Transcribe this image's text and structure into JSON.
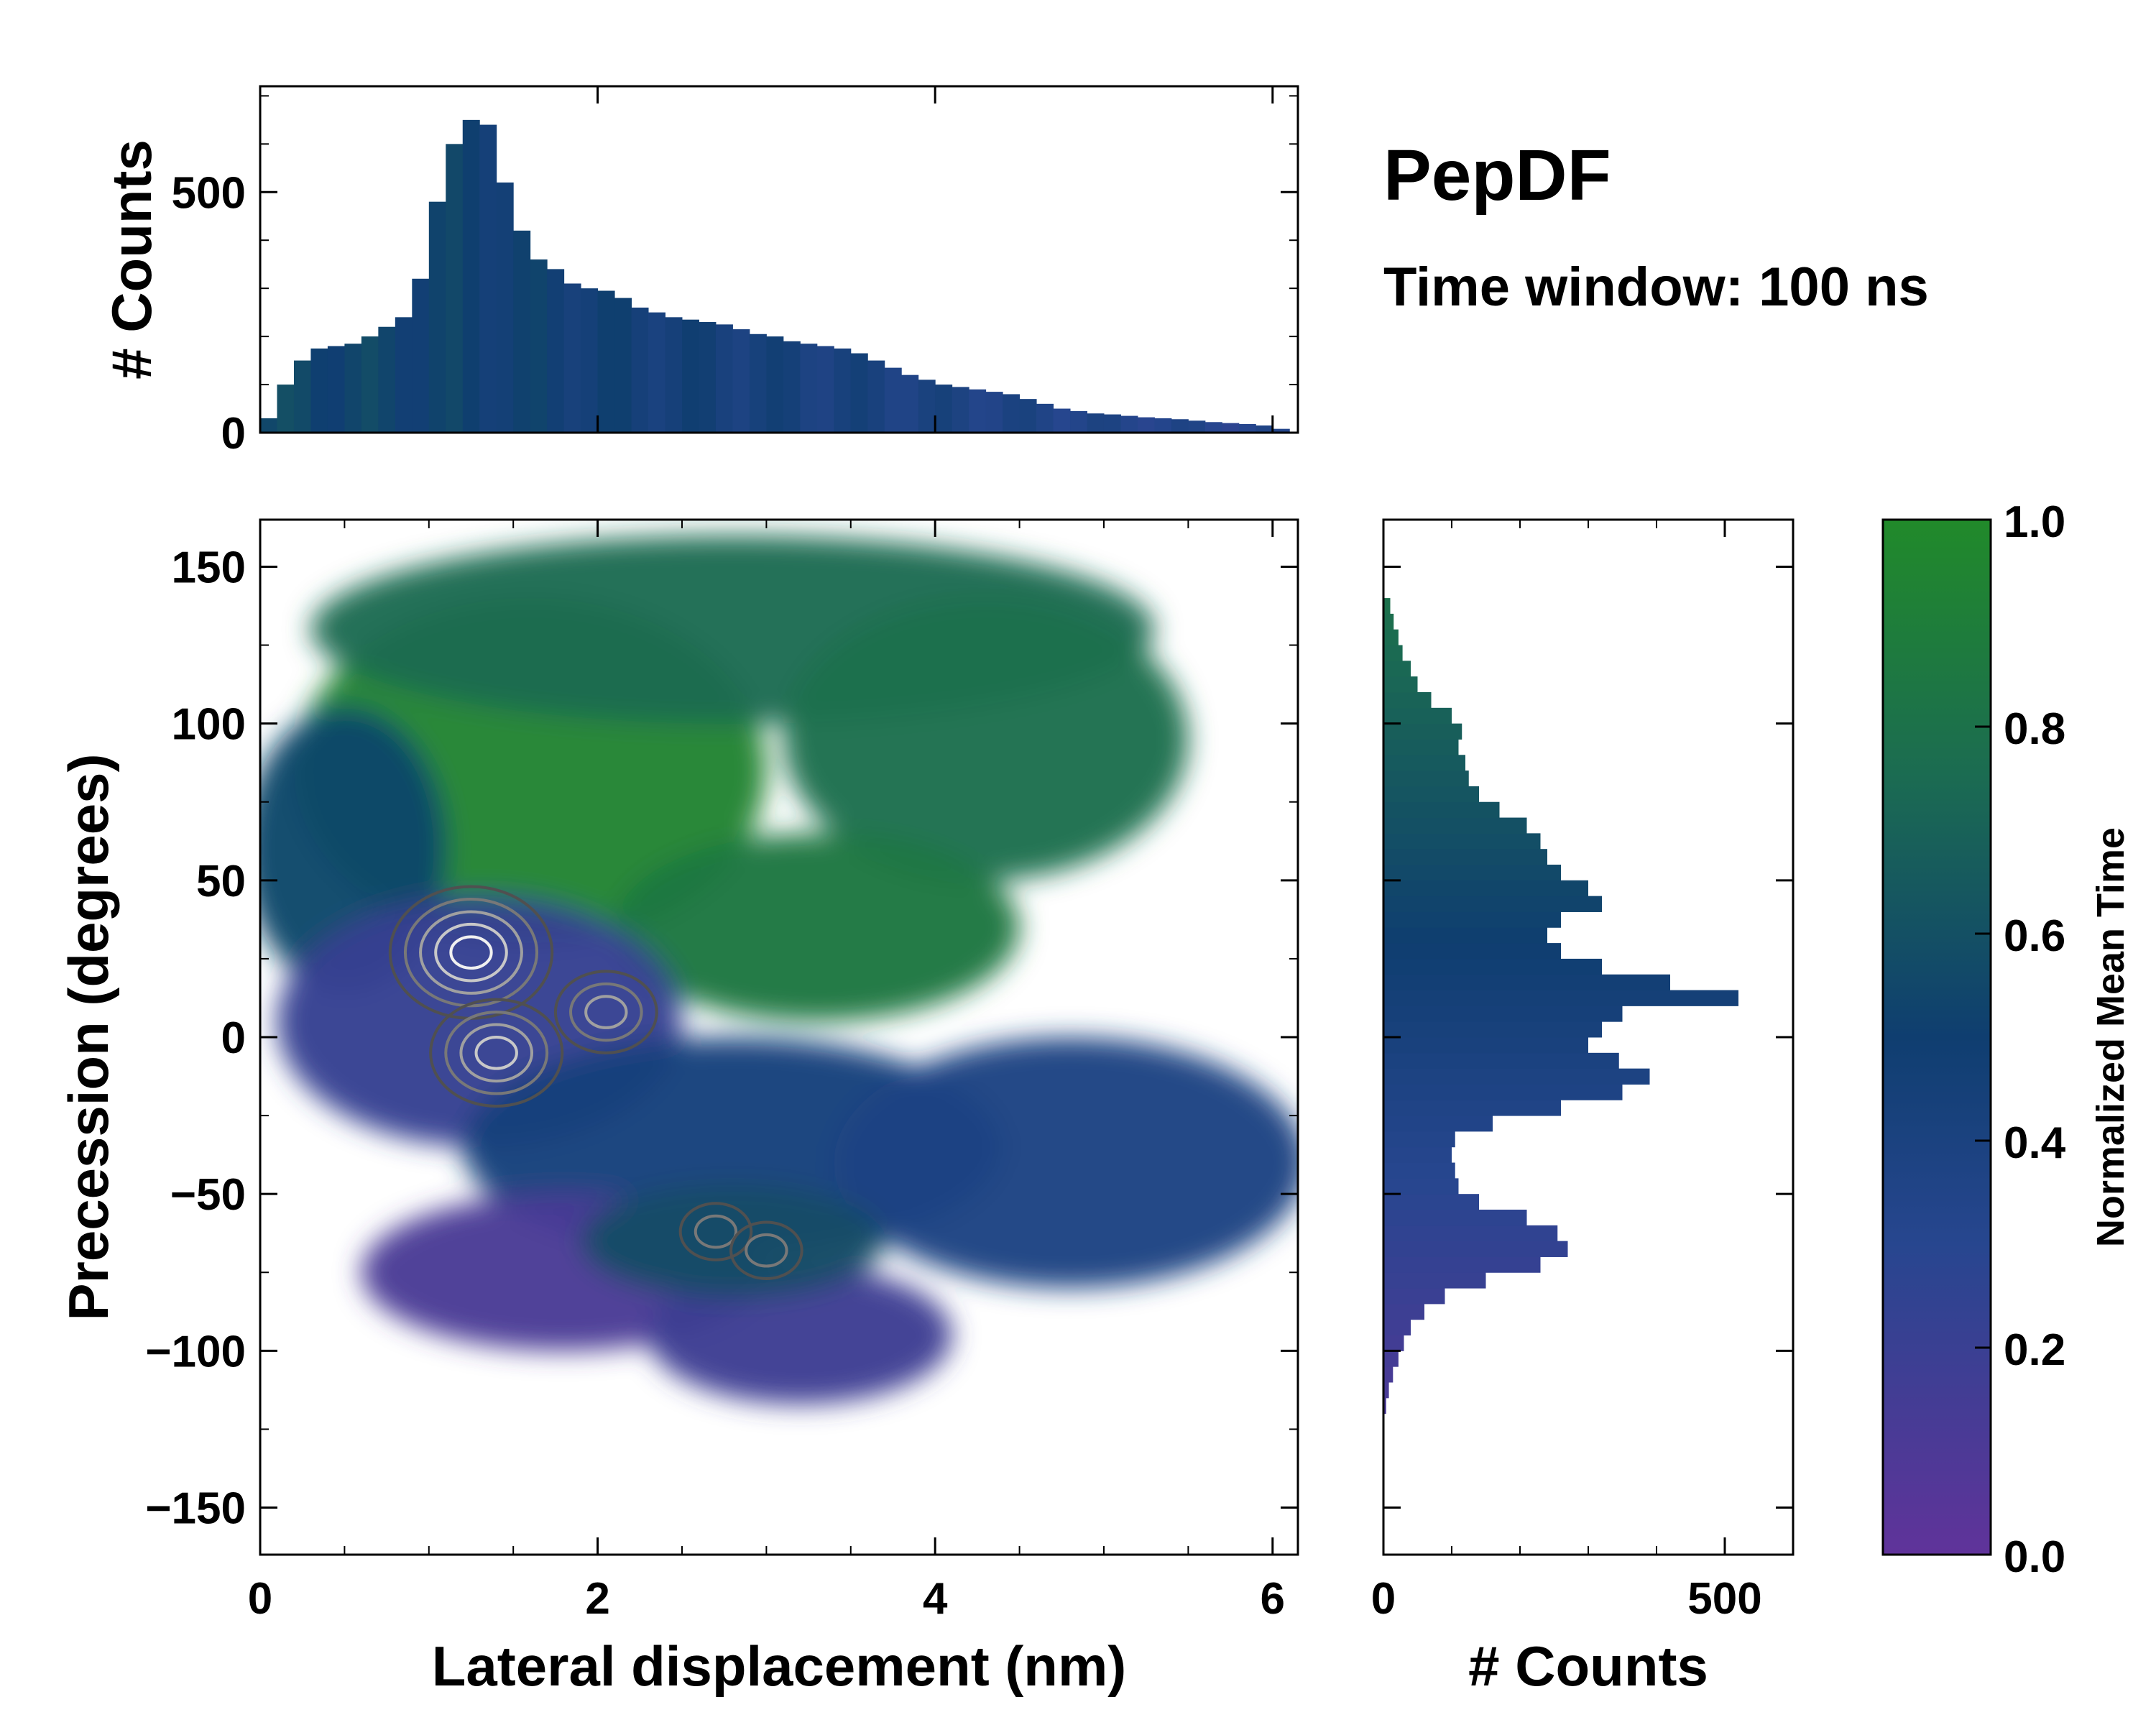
{
  "chart_data": {
    "type": "heatmap",
    "title": "PepDF",
    "subtitle": "Time window: 100 ns",
    "main": {
      "xlabel": "Lateral displacement (nm)",
      "ylabel": "Precession (degrees)",
      "xlim": [
        0,
        6.15
      ],
      "ylim": [
        -165,
        165
      ],
      "xticks": [
        0,
        2,
        4,
        6
      ],
      "xtick_labels": [
        "0",
        "2",
        "4",
        "6"
      ],
      "yticks": [
        150,
        100,
        50,
        0,
        -50,
        -100,
        -150
      ],
      "ytick_labels": [
        "150",
        "100",
        "50",
        "0",
        "−50",
        "−100",
        "−150"
      ],
      "regions": [
        {
          "name": "upper-left-green",
          "x": 1.6,
          "y": 85,
          "rx": 1.4,
          "ry": 55,
          "value": 0.95
        },
        {
          "name": "top-band",
          "x": 2.8,
          "y": 130,
          "rx": 2.5,
          "ry": 30,
          "value": 0.75
        },
        {
          "name": "upper-right-lobe",
          "x": 4.3,
          "y": 95,
          "rx": 1.2,
          "ry": 45,
          "value": 0.78
        },
        {
          "name": "mid-green",
          "x": 3.3,
          "y": 35,
          "rx": 1.2,
          "ry": 30,
          "value": 0.85
        },
        {
          "name": "left-blue",
          "x": 0.5,
          "y": 60,
          "rx": 0.6,
          "ry": 45,
          "value": 0.55
        },
        {
          "name": "central-purple",
          "x": 1.3,
          "y": 5,
          "rx": 1.2,
          "ry": 40,
          "value": 0.22
        },
        {
          "name": "lower-mid-blue",
          "x": 2.8,
          "y": -35,
          "rx": 1.6,
          "ry": 35,
          "value": 0.42
        },
        {
          "name": "right-band-blue",
          "x": 4.8,
          "y": -40,
          "rx": 1.4,
          "ry": 40,
          "value": 0.38
        },
        {
          "name": "lower-left-purple",
          "x": 1.8,
          "y": -75,
          "rx": 1.2,
          "ry": 25,
          "value": 0.12
        },
        {
          "name": "bottom-purple",
          "x": 3.2,
          "y": -95,
          "rx": 0.9,
          "ry": 22,
          "value": 0.18
        },
        {
          "name": "lower-teal",
          "x": 2.8,
          "y": -65,
          "rx": 0.9,
          "ry": 18,
          "value": 0.58
        }
      ],
      "density_peaks": [
        {
          "x": 1.25,
          "y": 27,
          "level": 5
        },
        {
          "x": 1.4,
          "y": -5,
          "level": 4
        },
        {
          "x": 2.05,
          "y": 8,
          "level": 3
        },
        {
          "x": 2.7,
          "y": -62,
          "level": 2
        },
        {
          "x": 3.0,
          "y": -68,
          "level": 2
        }
      ]
    },
    "top_histogram": {
      "ylabel": "# Counts",
      "ylim": [
        0,
        720
      ],
      "yticks": [
        0,
        500
      ],
      "ytick_labels": [
        "0",
        "500"
      ],
      "x_start": 0.0,
      "bin_width": 0.1,
      "counts": [
        30,
        100,
        150,
        175,
        180,
        185,
        200,
        220,
        240,
        320,
        480,
        600,
        650,
        640,
        520,
        420,
        360,
        340,
        310,
        300,
        295,
        280,
        260,
        250,
        240,
        235,
        230,
        225,
        215,
        205,
        200,
        190,
        185,
        180,
        175,
        165,
        150,
        135,
        120,
        110,
        100,
        95,
        90,
        85,
        80,
        70,
        60,
        50,
        45,
        40,
        38,
        35,
        32,
        30,
        28,
        25,
        22,
        20,
        18,
        15,
        8,
        2
      ]
    },
    "right_histogram": {
      "xlabel": "# Counts",
      "xlim": [
        0,
        600
      ],
      "xticks": [
        0,
        500
      ],
      "xtick_labels": [
        "0",
        "500"
      ],
      "y_start": -120,
      "bin_width": 5,
      "counts": [
        4,
        8,
        14,
        22,
        30,
        40,
        60,
        90,
        150,
        230,
        270,
        255,
        210,
        140,
        110,
        105,
        100,
        105,
        160,
        260,
        350,
        390,
        345,
        300,
        320,
        350,
        520,
        420,
        320,
        260,
        240,
        260,
        320,
        300,
        260,
        240,
        230,
        210,
        170,
        140,
        125,
        120,
        110,
        115,
        100,
        70,
        50,
        40,
        28,
        22,
        15,
        10
      ]
    },
    "colorbar": {
      "label": "Normalized Mean Time",
      "range": [
        0.0,
        1.0
      ],
      "ticks": [
        "0.0",
        "0.2",
        "0.4",
        "0.6",
        "0.8",
        "1.0"
      ],
      "colors": [
        "#60339a",
        "#27468f",
        "#0f3e70",
        "#1b6b52",
        "#218a2a"
      ]
    }
  }
}
